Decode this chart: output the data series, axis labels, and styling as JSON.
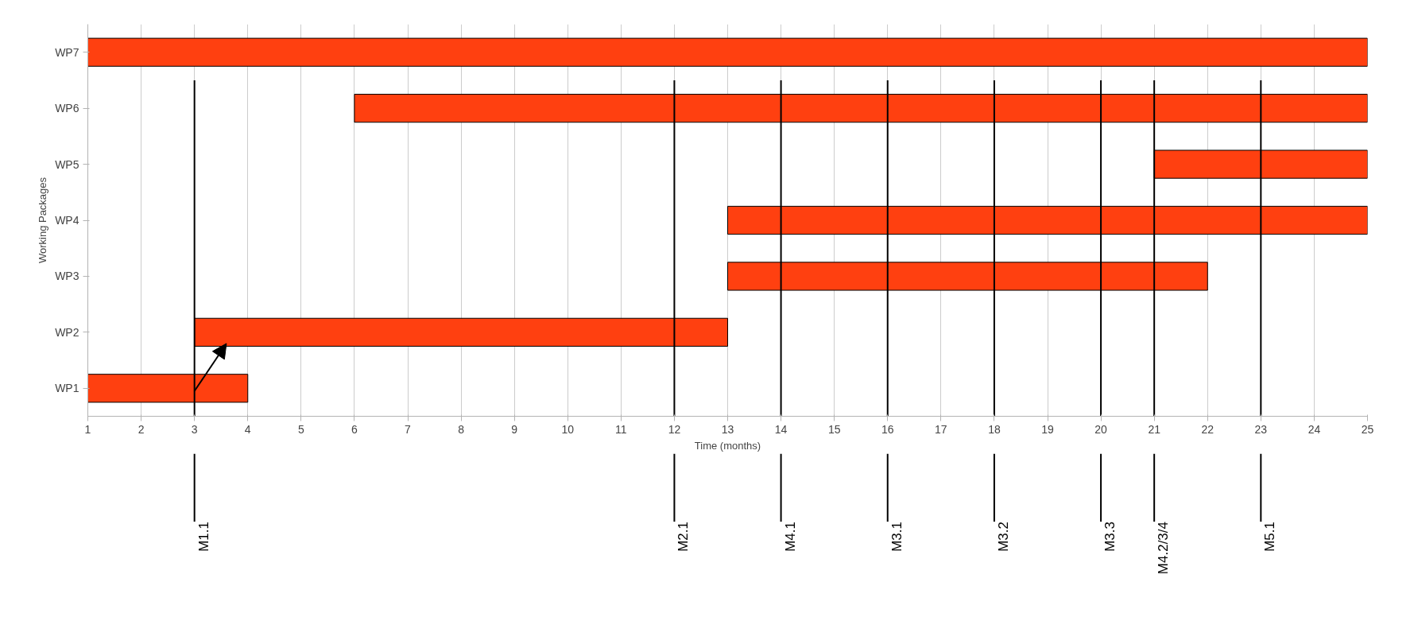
{
  "chart_data": {
    "type": "bar",
    "orientation": "horizontal",
    "xlabel": "Time (months)",
    "ylabel": "Working Packages",
    "categories": [
      "WP7",
      "WP6",
      "WP5",
      "WP4",
      "WP3",
      "WP2",
      "WP1"
    ],
    "base": [
      1,
      6,
      21,
      13,
      13,
      3,
      1
    ],
    "values": [
      24,
      19,
      4,
      12,
      9,
      10,
      3
    ],
    "color": "#ff4010",
    "xlim": [
      1,
      25
    ],
    "xticks": [
      1,
      2,
      3,
      4,
      5,
      6,
      7,
      8,
      9,
      10,
      11,
      12,
      13,
      14,
      15,
      16,
      17,
      18,
      19,
      20,
      21,
      22,
      23,
      24,
      25
    ],
    "grid": "x",
    "ref_lines": [
      {
        "axis": "x",
        "value": 3,
        "label": "M1.1"
      },
      {
        "axis": "x",
        "value": 12,
        "label": "M2.1"
      },
      {
        "axis": "x",
        "value": 14,
        "label": "M4.1"
      },
      {
        "axis": "x",
        "value": 16,
        "label": "M3.1"
      },
      {
        "axis": "x",
        "value": 18,
        "label": "M3.2"
      },
      {
        "axis": "x",
        "value": 20,
        "label": "M3.3"
      },
      {
        "axis": "x",
        "value": 21,
        "label": "M4.2/3/4"
      },
      {
        "axis": "x",
        "value": 23,
        "label": "M5.1"
      }
    ]
  }
}
